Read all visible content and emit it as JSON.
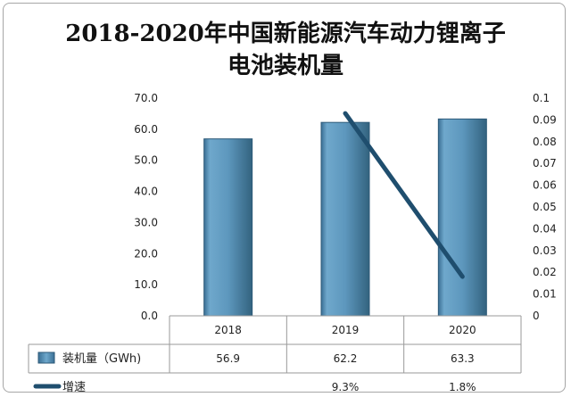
{
  "chart_data": {
    "type": "bar",
    "title_line1": "2018-2020年中国新能源汽车动力锂离子",
    "title_line2": "电池装机量",
    "categories": [
      "2018",
      "2019",
      "2020"
    ],
    "series": [
      {
        "name": "装机量（GWh)",
        "type": "bar",
        "axis": "left",
        "values": [
          56.9,
          62.2,
          63.3
        ],
        "color": "#5b9bd5",
        "labels": [
          "56.9",
          "62.2",
          "63.3"
        ]
      },
      {
        "name": "增速",
        "type": "line",
        "axis": "right",
        "values": [
          null,
          0.093,
          0.018
        ],
        "color": "#1f4e79",
        "labels": [
          "",
          "9.3%",
          "1.8%"
        ]
      }
    ],
    "y_left": {
      "min": 0,
      "max": 70,
      "ticks": [
        "0.0",
        "10.0",
        "20.0",
        "30.0",
        "40.0",
        "50.0",
        "60.0",
        "70.0"
      ]
    },
    "y_right": {
      "min": 0,
      "max": 0.1,
      "ticks": [
        "0",
        "0.01",
        "0.02",
        "0.03",
        "0.04",
        "0.05",
        "0.06",
        "0.07",
        "0.08",
        "0.09",
        "0.1"
      ]
    },
    "legend": "data-table",
    "grid": false
  }
}
